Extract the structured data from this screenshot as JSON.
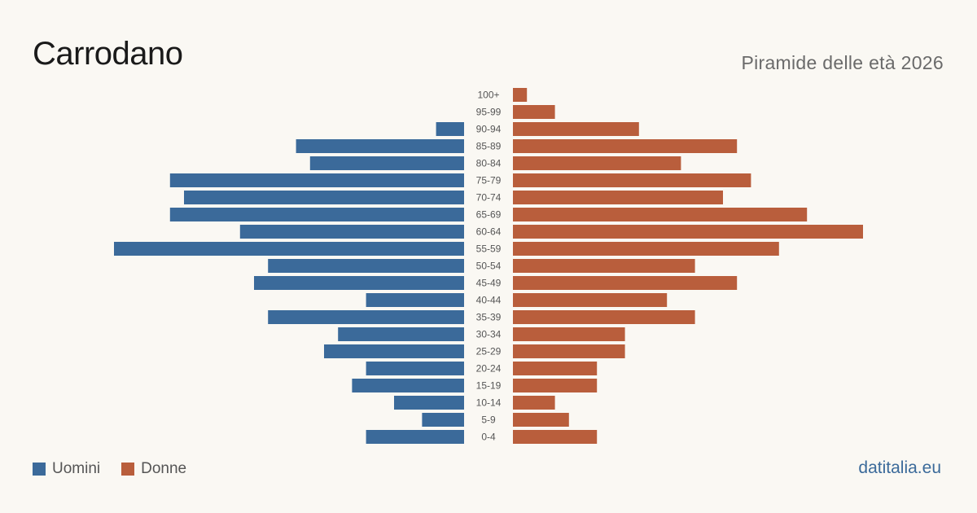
{
  "header": {
    "title": "Carrodano",
    "subtitle": "Piramide delle età 2026"
  },
  "legend": {
    "men_label": "Uomini",
    "women_label": "Donne"
  },
  "footer": {
    "source": "datitalia.eu"
  },
  "colors": {
    "men": "#3b6a9a",
    "women": "#b95e3c",
    "background": "#faf8f3"
  },
  "chart_data": {
    "type": "bar",
    "orientation": "horizontal",
    "layout": "population-pyramid",
    "title": "Carrodano",
    "subtitle": "Piramide delle età 2026",
    "categories": [
      "100+",
      "95-99",
      "90-94",
      "85-89",
      "80-84",
      "75-79",
      "70-74",
      "65-69",
      "60-64",
      "55-59",
      "50-54",
      "45-49",
      "40-44",
      "35-39",
      "30-34",
      "25-29",
      "20-24",
      "15-19",
      "10-14",
      "5-9",
      "0-4"
    ],
    "series": [
      {
        "name": "Uomini",
        "values": [
          0,
          0,
          2,
          12,
          11,
          21,
          20,
          21,
          16,
          25,
          14,
          15,
          7,
          14,
          9,
          10,
          7,
          8,
          5,
          3,
          7
        ]
      },
      {
        "name": "Donne",
        "values": [
          1,
          3,
          9,
          16,
          12,
          17,
          15,
          21,
          25,
          19,
          13,
          16,
          11,
          13,
          8,
          8,
          6,
          6,
          3,
          4,
          6
        ]
      }
    ],
    "grid": false,
    "legend_position": "bottom-left"
  }
}
